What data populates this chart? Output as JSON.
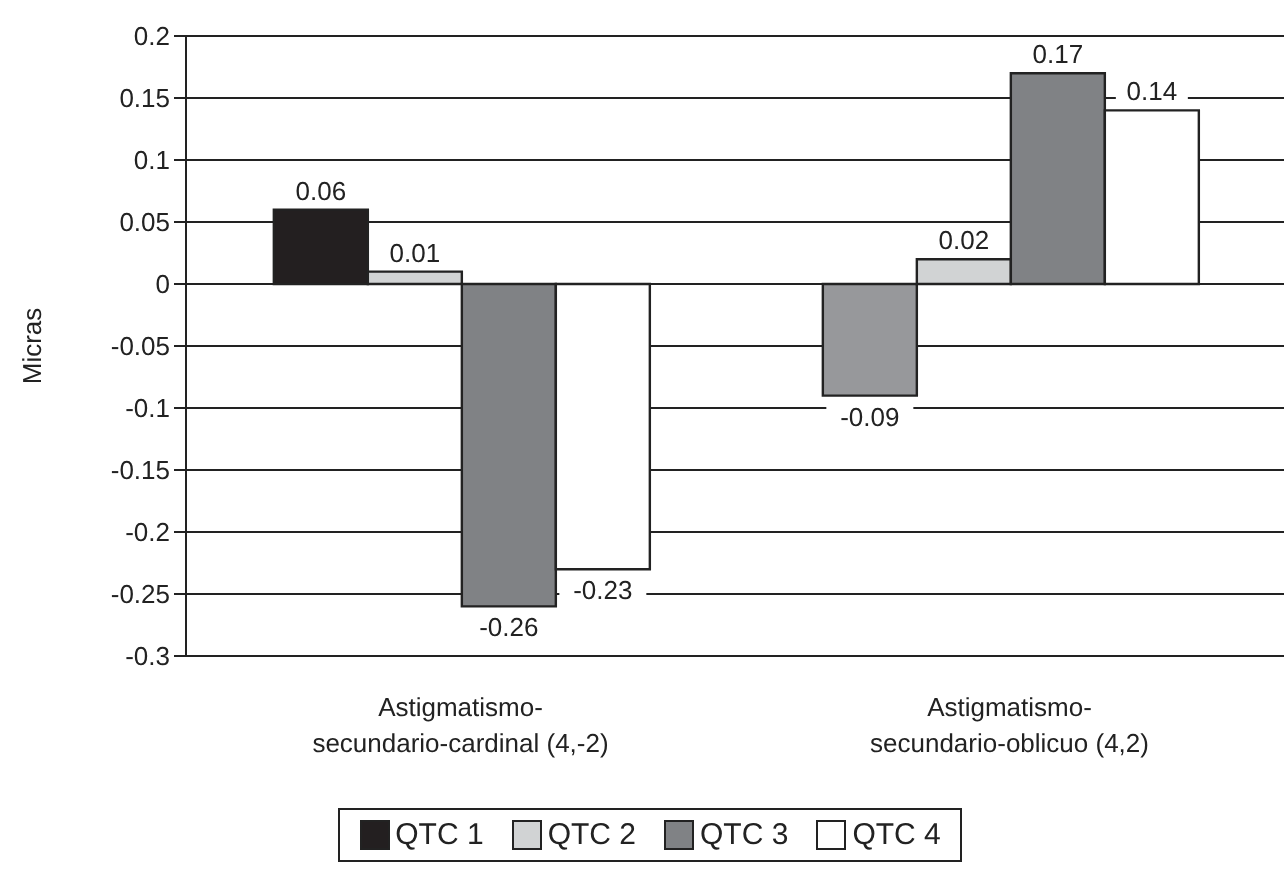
{
  "chart_data": {
    "type": "bar",
    "ylabel": "Micras",
    "categories": [
      "Astigmatismo-secundario-cardinal (4,-2)",
      "Astigmatismo-secundario-oblicuo (4,2)"
    ],
    "series": [
      {
        "name": "QTC 1",
        "color": "#231f20",
        "colors": [
          "#231f20",
          "#97989b"
        ],
        "values": [
          0.06,
          -0.09
        ]
      },
      {
        "name": "QTC 2",
        "color": "#d1d3d4",
        "values": [
          0.01,
          0.02
        ]
      },
      {
        "name": "QTC 3",
        "color": "#808285",
        "values": [
          -0.26,
          0.17
        ]
      },
      {
        "name": "QTC 4",
        "color": "#ffffff",
        "values": [
          -0.23,
          0.14
        ]
      }
    ],
    "ylim": [
      -0.3,
      0.2
    ],
    "yticks": [
      -0.3,
      -0.25,
      -0.2,
      -0.15,
      -0.1,
      -0.05,
      0,
      0.05,
      0.1,
      0.15,
      0.2
    ],
    "grid": "y",
    "legend": "bottom",
    "data_labels": true
  }
}
